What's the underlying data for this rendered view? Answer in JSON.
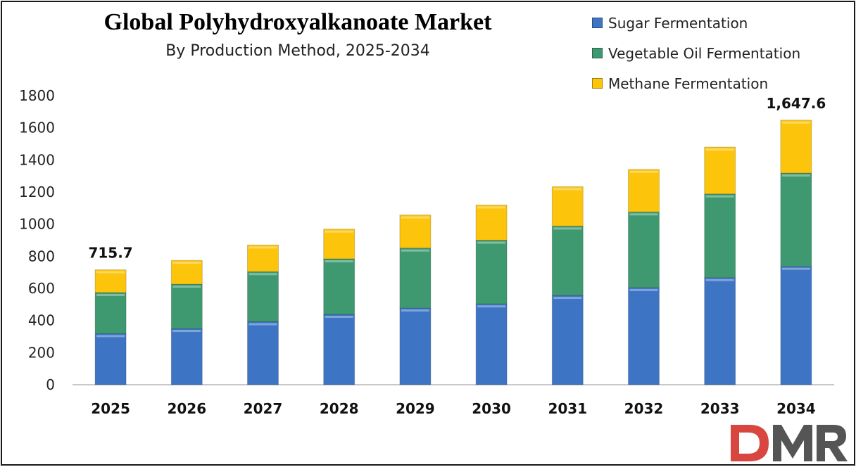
{
  "chart_data": {
    "type": "bar",
    "stacked": true,
    "title": "Global Polyhydroxyalkanoate Market",
    "subtitle": "By Production Method, 2025-2034",
    "categories": [
      "2025",
      "2026",
      "2027",
      "2028",
      "2029",
      "2030",
      "2031",
      "2032",
      "2033",
      "2034"
    ],
    "series": [
      {
        "name": "Sugar Fermentation",
        "color": "#3d75c4",
        "values": [
          318,
          350,
          392,
          438,
          478,
          503,
          556,
          605,
          667,
          737
        ]
      },
      {
        "name": "Vegetable Oil Fermentation",
        "color": "#3e9971",
        "values": [
          256,
          276,
          312,
          346,
          373,
          397,
          432,
          471,
          521,
          581
        ]
      },
      {
        "name": "Methane Fermentation",
        "color": "#fcc40a",
        "values": [
          141.7,
          148,
          166,
          185,
          206,
          219,
          245,
          265,
          292,
          329.6
        ]
      }
    ],
    "data_labels": [
      {
        "category": "2025",
        "text": "715.7"
      },
      {
        "category": "2034",
        "text": "1,647.6"
      }
    ],
    "yticks": [
      "0",
      "200",
      "400",
      "600",
      "800",
      "1000",
      "1200",
      "1400",
      "1600",
      "1800"
    ],
    "ylim": [
      0,
      1800
    ],
    "grid": false,
    "legend_position": "top-right",
    "xlabel": "",
    "ylabel": ""
  },
  "logo": {
    "text": "DMR",
    "color_d": "#d9453f",
    "color_mr": "#555555"
  }
}
